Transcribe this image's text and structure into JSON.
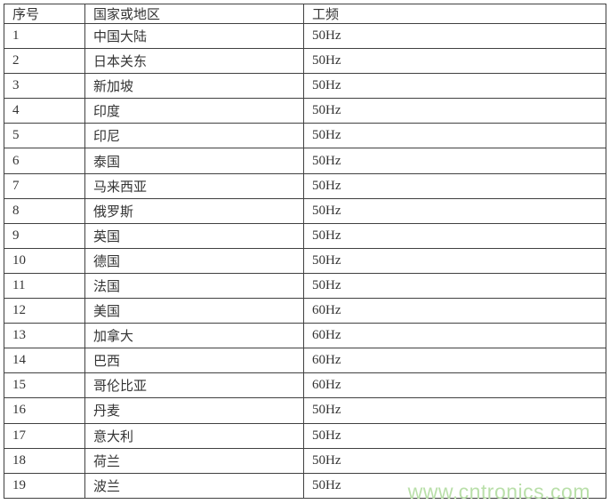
{
  "colors": {
    "border": "#404040",
    "text": "#333333",
    "background": "#ffffff",
    "watermark": "#b9dfa9"
  },
  "watermark": {
    "text": "www.cntronics.com"
  },
  "table": {
    "columns": [
      {
        "key": "seq",
        "label": "序号"
      },
      {
        "key": "region",
        "label": "国家或地区"
      },
      {
        "key": "freq",
        "label": "工频"
      }
    ],
    "rows": [
      {
        "seq": "1",
        "region": "中国大陆",
        "freq": "50Hz"
      },
      {
        "seq": "2",
        "region": "日本关东",
        "freq": "50Hz"
      },
      {
        "seq": "3",
        "region": "新加坡",
        "freq": "50Hz"
      },
      {
        "seq": "4",
        "region": "印度",
        "freq": "50Hz"
      },
      {
        "seq": "5",
        "region": "印尼",
        "freq": "50Hz"
      },
      {
        "seq": "6",
        "region": "泰国",
        "freq": "50Hz"
      },
      {
        "seq": "7",
        "region": "马来西亚",
        "freq": "50Hz"
      },
      {
        "seq": "8",
        "region": "俄罗斯",
        "freq": "50Hz"
      },
      {
        "seq": "9",
        "region": "英国",
        "freq": "50Hz"
      },
      {
        "seq": "10",
        "region": "德国",
        "freq": "50Hz"
      },
      {
        "seq": "11",
        "region": "法国",
        "freq": "50Hz"
      },
      {
        "seq": "12",
        "region": "美国",
        "freq": "60Hz"
      },
      {
        "seq": "13",
        "region": "加拿大",
        "freq": "60Hz"
      },
      {
        "seq": "14",
        "region": "巴西",
        "freq": "60Hz"
      },
      {
        "seq": "15",
        "region": "哥伦比亚",
        "freq": "60Hz"
      },
      {
        "seq": "16",
        "region": "丹麦",
        "freq": "50Hz"
      },
      {
        "seq": "17",
        "region": "意大利",
        "freq": "50Hz"
      },
      {
        "seq": "18",
        "region": "荷兰",
        "freq": "50Hz"
      },
      {
        "seq": "19",
        "region": "波兰",
        "freq": "50Hz"
      }
    ]
  }
}
